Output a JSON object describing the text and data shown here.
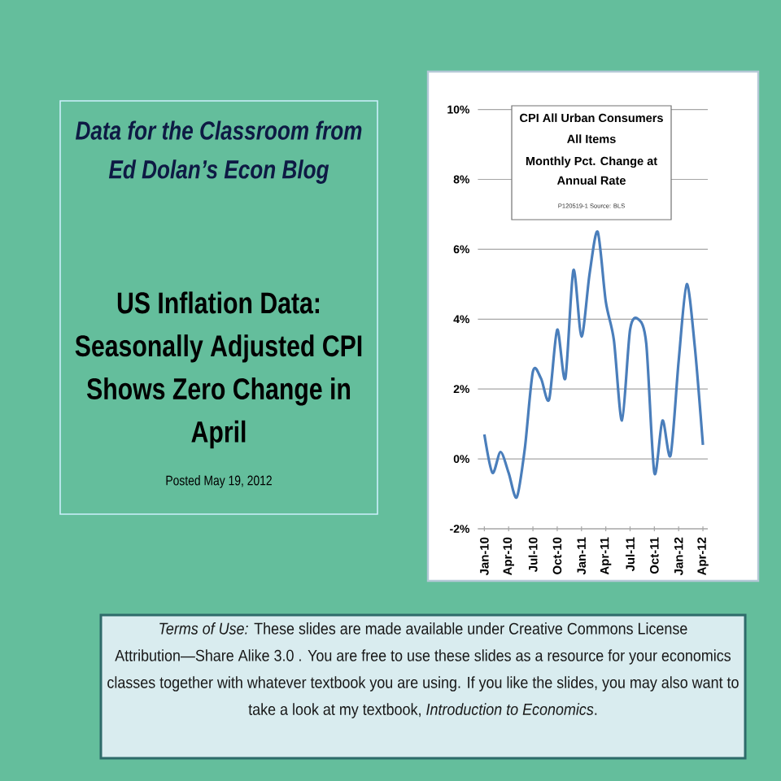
{
  "chart_data": {
    "type": "line",
    "title": "CPI All Urban Consumers All Items",
    "subtitle": "Monthly Pct. Change at Annual Rate",
    "annotations": [
      "P120519-1 Source: BLS",
      "Data for the Classroom from Ed Dolan’s Econ Blog",
      "US Inflation Data: Seasonally Adjusted CPI Shows Zero Change in April",
      "Posted May 19, 2012",
      "*Terms of Use:* These slides are made available under Creative Commons License Attribution—Share Alike 3.0 . You are free to use these slides as a resource for your economics classes together with whatever textbook you are using. If you like the slides, you may also want to take a look at my textbook, *Introduction to Economics*."
    ],
    "categories": [
      "Jan-10",
      null,
      null,
      "Apr-10",
      null,
      null,
      "Jul-10",
      null,
      null,
      "Oct-10",
      null,
      null,
      "Jan-11",
      null,
      null,
      "Apr-11",
      null,
      null,
      "Jul-11",
      null,
      null,
      "Oct-11",
      null,
      null,
      "Jan-12",
      null,
      null,
      "Apr-12"
    ],
    "values": [
      0.7,
      -0.4,
      0.2,
      -0.4,
      -1.1,
      0.3,
      2.5,
      2.3,
      1.7,
      3.7,
      2.3,
      5.4,
      3.5,
      5.3,
      6.5,
      4.5,
      3.4,
      1.1,
      3.7,
      4.0,
      3.3,
      -0.4,
      1.1,
      0.1,
      2.8,
      5.0,
      3.2,
      0.4
    ],
    "color": "#4a7ebb",
    "ylim": [
      -2,
      10
    ],
    "yticks": [
      {
        "value": -2,
        "label": "-2%"
      },
      {
        "value": 0,
        "label": "0%"
      },
      {
        "value": 2,
        "label": "2%"
      },
      {
        "value": 4,
        "label": "4%"
      },
      {
        "value": 6,
        "label": "6%"
      },
      {
        "value": 8,
        "label": "8%"
      },
      {
        "value": 10,
        "label": "10%"
      }
    ],
    "grid": "y"
  }
}
